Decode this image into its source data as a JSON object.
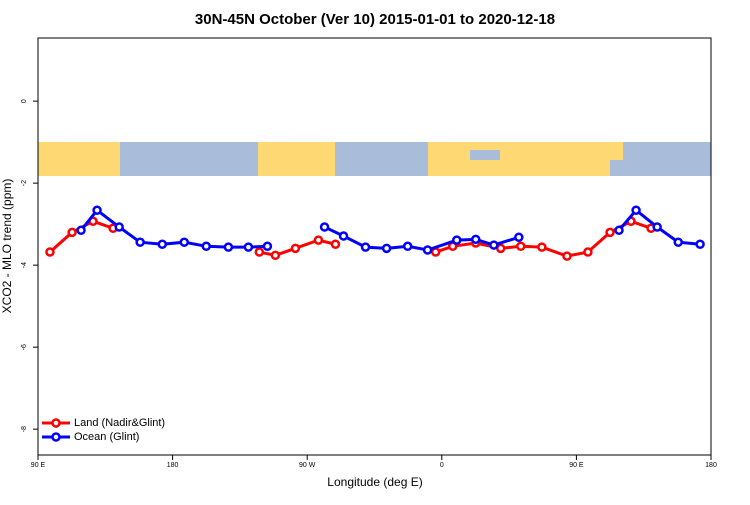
{
  "chart_data": {
    "type": "line",
    "title": "30N-45N October (Ver 10)   2015-01-01 to 2020-12-18",
    "xlabel": "Longitude (deg E)",
    "ylabel": "XCO2 - MLO trend (ppm)",
    "xlim": [
      90,
      540
    ],
    "ylim": [
      -8.63,
      1.54
    ],
    "xticks": [
      {
        "value": 90,
        "label": "90 E"
      },
      180,
      {
        "value": 270,
        "label": "90 W"
      },
      {
        "value": 360,
        "label": "0"
      },
      {
        "value": 450,
        "label": "90 E"
      },
      {
        "value": 540,
        "label": "180"
      }
    ],
    "yticks": [
      0,
      -2,
      -4,
      -6,
      -8
    ],
    "legend": "bottom-left",
    "series": [
      {
        "name": "Land (Nadir&Glint)",
        "color": "#ff0000",
        "x": [
          98.0,
          112.8,
          126.8,
          140.2,
          null,
          238.0,
          248.7,
          262.1,
          277.5,
          288.9,
          null,
          355.9,
          367.3,
          382.7,
          399.4,
          412.8,
          426.9,
          443.7,
          457.7,
          472.5,
          486.5,
          499.9
        ],
        "values": [
          -3.68,
          -3.2,
          -2.93,
          -3.1,
          null,
          -3.68,
          -3.76,
          -3.59,
          -3.39,
          -3.49,
          null,
          -3.68,
          -3.54,
          -3.46,
          -3.59,
          -3.54,
          -3.56,
          -3.78,
          -3.68,
          -3.2,
          -2.93,
          -3.1
        ]
      },
      {
        "name": "Ocean (Glint)",
        "color": "#0000ff",
        "x": [
          118.8,
          129.5,
          144.3,
          158.3,
          173.1,
          187.8,
          202.5,
          217.3,
          230.7,
          243.4,
          null,
          281.6,
          294.3,
          309.0,
          323.1,
          337.2,
          350.5,
          370.0,
          382.7,
          394.8,
          411.5,
          null,
          478.5,
          489.9,
          504.0,
          518.1,
          532.7
        ],
        "values": [
          -3.15,
          -2.66,
          -3.07,
          -3.44,
          -3.49,
          -3.44,
          -3.54,
          -3.56,
          -3.56,
          -3.54,
          null,
          -3.07,
          -3.29,
          -3.56,
          -3.59,
          -3.54,
          -3.63,
          -3.39,
          -3.37,
          -3.51,
          -3.32,
          null,
          -3.15,
          -2.66,
          -3.07,
          -3.44,
          -3.49
        ]
      }
    ]
  }
}
